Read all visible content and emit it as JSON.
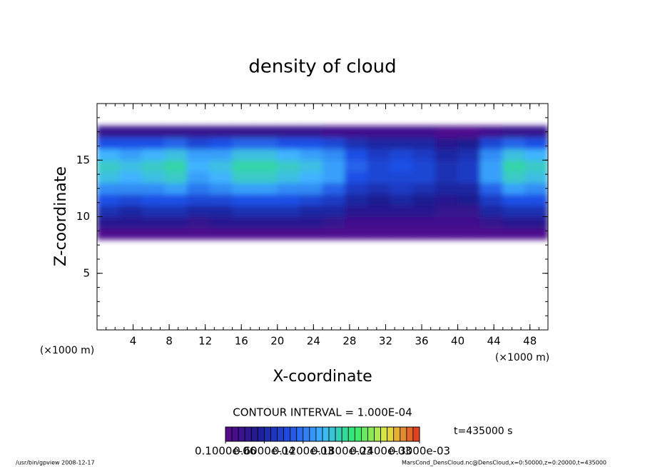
{
  "chart_data": {
    "type": "contour",
    "title": "density of cloud",
    "x_label": "X-coordinate",
    "y_label": "Z-coordinate",
    "x_unit": "(×1000 m)",
    "y_unit": "(×1000 m)",
    "xlim": [
      0,
      50
    ],
    "ylim": [
      0,
      20
    ],
    "xticks": [
      4,
      8,
      12,
      16,
      20,
      24,
      28,
      32,
      36,
      40,
      44,
      48
    ],
    "yticks": [
      5,
      10,
      15
    ],
    "x": [
      1.25,
      3.75,
      6.25,
      8.75,
      11.25,
      13.75,
      16.25,
      18.75,
      21.25,
      23.75,
      26.25,
      28.75,
      31.25,
      33.75,
      36.25,
      38.75,
      41.25,
      43.75,
      46.25,
      48.75
    ],
    "y": [
      8.5,
      9.5,
      10.5,
      11.5,
      12.5,
      13.5,
      14.5,
      15.5,
      16.5,
      17.5
    ],
    "values": [
      [
        1e-05,
        1e-05,
        1e-05,
        1e-05,
        1e-05,
        1e-05,
        1e-05,
        1e-05,
        1e-05,
        1e-05,
        1e-05,
        1e-05,
        1e-05,
        1e-05,
        1e-05,
        1e-05,
        1e-05,
        1e-05,
        1e-05,
        1e-05
      ],
      [
        4e-05,
        4e-05,
        4e-05,
        4e-05,
        3e-05,
        4e-05,
        4e-05,
        4e-05,
        4e-05,
        4e-05,
        3e-05,
        2e-05,
        2e-05,
        2e-05,
        2e-05,
        2e-05,
        2e-05,
        3e-05,
        4e-05,
        4e-05
      ],
      [
        7e-05,
        6e-05,
        7e-05,
        7e-05,
        6e-05,
        6e-05,
        7e-05,
        7e-05,
        7e-05,
        6e-05,
        6e-05,
        4e-05,
        4e-05,
        4e-05,
        4e-05,
        3e-05,
        3e-05,
        6e-05,
        7e-05,
        7e-05
      ],
      [
        0.0001,
        9e-05,
        0.0001,
        0.0001,
        9e-05,
        9e-05,
        0.0001,
        0.0001,
        0.0001,
        9e-05,
        8e-05,
        6e-05,
        5e-05,
        6e-05,
        5e-05,
        4e-05,
        5e-05,
        8e-05,
        0.0001,
        0.0001
      ],
      [
        0.00013,
        0.00013,
        0.00013,
        0.00014,
        0.00012,
        0.00013,
        0.00014,
        0.00014,
        0.00013,
        0.00013,
        0.00011,
        8e-05,
        7e-05,
        8e-05,
        7e-05,
        6e-05,
        6e-05,
        0.00011,
        0.00014,
        0.00013
      ],
      [
        0.00016,
        0.00015,
        0.00016,
        0.00017,
        0.00014,
        0.00015,
        0.00017,
        0.00017,
        0.00016,
        0.00015,
        0.00014,
        0.0001,
        9e-05,
        9e-05,
        9e-05,
        7e-05,
        8e-05,
        0.00014,
        0.00017,
        0.00016
      ],
      [
        0.00017,
        0.00016,
        0.00017,
        0.00018,
        0.00015,
        0.00016,
        0.00018,
        0.00018,
        0.00017,
        0.00016,
        0.00014,
        0.00011,
        9e-05,
        0.0001,
        9e-05,
        7e-05,
        8e-05,
        0.00014,
        0.00018,
        0.00017
      ],
      [
        0.00015,
        0.00014,
        0.00015,
        0.00016,
        0.00014,
        0.00014,
        0.00016,
        0.00016,
        0.00015,
        0.00014,
        0.00013,
        0.0001,
        8e-05,
        9e-05,
        8e-05,
        6e-05,
        7e-05,
        0.00013,
        0.00016,
        0.00015
      ],
      [
        0.0001,
        0.0001,
        0.0001,
        0.00011,
        9e-05,
        0.0001,
        0.00011,
        0.00011,
        0.0001,
        0.0001,
        9e-05,
        7e-05,
        6e-05,
        6e-05,
        6e-05,
        4e-05,
        5e-05,
        9e-05,
        0.00011,
        0.0001
      ],
      [
        3e-05,
        3e-05,
        3e-05,
        3e-05,
        3e-05,
        3e-05,
        3e-05,
        3e-05,
        3e-05,
        3e-05,
        2e-05,
        2e-05,
        2e-05,
        2e-05,
        2e-05,
        1e-05,
        1e-05,
        2e-05,
        3e-05,
        3e-05
      ]
    ],
    "colormap": [
      "#5a0a8c",
      "#1c1c90",
      "#1f50e6",
      "#40b4ff",
      "#30ea70",
      "#e6e640",
      "#e03020"
    ],
    "clim": [
      0,
      0.0003
    ],
    "colorbar_ticks": [
      {
        "value": 1e-07,
        "label": "0.1000e-06"
      },
      {
        "value": 6e-05,
        "label": "0.6000e-04"
      },
      {
        "value": 0.00012,
        "label": "0.1200e-03"
      },
      {
        "value": 0.00018,
        "label": "0.1800e-03"
      },
      {
        "value": 0.00024,
        "label": "0.2400e-03"
      },
      {
        "value": 0.0003,
        "label": "0.3000e-03"
      }
    ],
    "contour_interval": "CONTOUR INTERVAL = 1.000E-04",
    "time_label": "t=435000 s",
    "footer_left": "/usr/bin/gpview   2008-12-17",
    "footer_right": "MarsCond_DensCloud.nc@DensCloud,x=0:50000,z=0:20000,t=435000"
  }
}
